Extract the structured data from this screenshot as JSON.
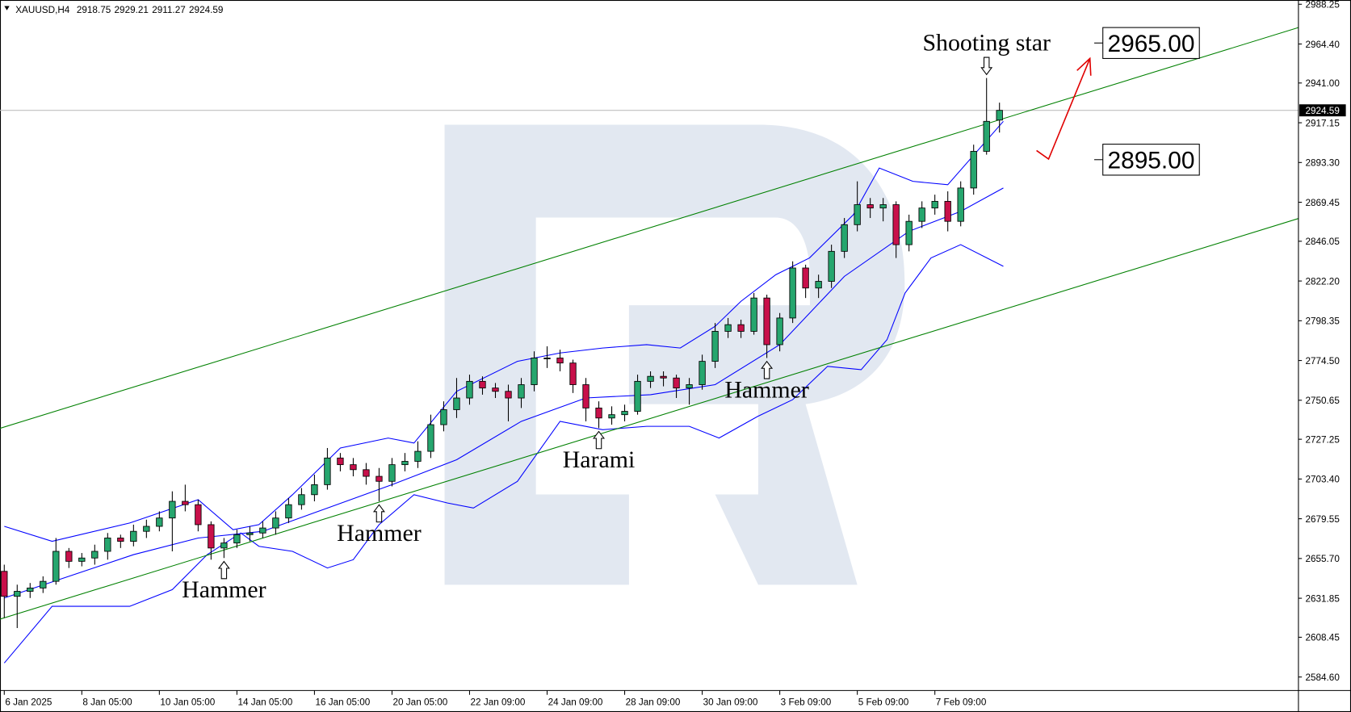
{
  "chart_data": {
    "type": "candlestick",
    "symbol": "XAUUSD,H4",
    "xlim": [
      -0.33,
      100.13
    ],
    "ylim": [
      2576.5,
      2990.8
    ],
    "yticks": [
      2988.25,
      {
        "value": 2964.4,
        "label": "2964.40"
      },
      {
        "value": 2941,
        "label": "2941.00"
      },
      2917.15,
      {
        "value": 2893.3,
        "label": "2893.30"
      },
      2869.45,
      2846.05,
      {
        "value": 2822.2,
        "label": "2822.20"
      },
      2798.35,
      {
        "value": 2774.5,
        "label": "2774.50"
      },
      2750.65,
      2727.25,
      {
        "value": 2703.4,
        "label": "2703.40"
      },
      2679.55,
      {
        "value": 2655.7,
        "label": "2655.70"
      },
      2631.85,
      2608.45,
      {
        "value": 2584.6,
        "label": "2584.60"
      }
    ],
    "xticks": [
      {
        "value": 0,
        "label": "6 Jan 2025"
      },
      {
        "value": 6,
        "label": "8 Jan 05:00"
      },
      {
        "value": 12,
        "label": "10 Jan 05:00"
      },
      {
        "value": 18,
        "label": "14 Jan 05:00"
      },
      {
        "value": 24,
        "label": "16 Jan 05:00"
      },
      {
        "value": 30,
        "label": "20 Jan 05:00"
      },
      {
        "value": 36,
        "label": "22 Jan 09:00"
      },
      {
        "value": 42,
        "label": "24 Jan 09:00"
      },
      {
        "value": 48,
        "label": "28 Jan 09:00"
      },
      {
        "value": 54,
        "label": "30 Jan 09:00"
      },
      {
        "value": 60,
        "label": "3 Feb 09:00"
      },
      {
        "value": 66,
        "label": "5 Feb 09:00"
      },
      {
        "value": 72,
        "label": "7 Feb 09:00"
      }
    ],
    "up_color": "#26a66e",
    "down_color": "#c8104a",
    "ohlc": [
      [
        2648,
        2652,
        2620,
        2633
      ],
      [
        2633,
        2640,
        2614,
        2636
      ],
      [
        2636,
        2641,
        2632,
        2638
      ],
      [
        2638,
        2645,
        2635,
        2642
      ],
      [
        2642,
        2668,
        2640,
        2660
      ],
      [
        2660,
        2662,
        2650,
        2654
      ],
      [
        2654,
        2659,
        2651,
        2656
      ],
      [
        2656,
        2664,
        2652,
        2660
      ],
      [
        2660,
        2671,
        2655,
        2668
      ],
      [
        2668,
        2670,
        2662,
        2666
      ],
      [
        2666,
        2676,
        2663,
        2672
      ],
      [
        2672,
        2679,
        2668,
        2675
      ],
      [
        2675,
        2684,
        2672,
        2680
      ],
      [
        2680,
        2696,
        2660,
        2690
      ],
      [
        2690,
        2700,
        2684,
        2688
      ],
      [
        2688,
        2691,
        2672,
        2676
      ],
      [
        2676,
        2678,
        2655,
        2662
      ],
      [
        2662,
        2668,
        2656,
        2665
      ],
      [
        2665,
        2673,
        2662,
        2670
      ],
      [
        2670,
        2675,
        2666,
        2671
      ],
      [
        2671,
        2678,
        2668,
        2674
      ],
      [
        2674,
        2684,
        2670,
        2680
      ],
      [
        2680,
        2692,
        2677,
        2688
      ],
      [
        2688,
        2698,
        2685,
        2694
      ],
      [
        2694,
        2706,
        2690,
        2700
      ],
      [
        2700,
        2722,
        2697,
        2716
      ],
      [
        2716,
        2719,
        2708,
        2712
      ],
      [
        2712,
        2716,
        2705,
        2709
      ],
      [
        2709,
        2713,
        2700,
        2705
      ],
      [
        2705,
        2710,
        2690,
        2702
      ],
      [
        2702,
        2716,
        2699,
        2712
      ],
      [
        2712,
        2719,
        2708,
        2714
      ],
      [
        2714,
        2726,
        2710,
        2720
      ],
      [
        2720,
        2742,
        2716,
        2736
      ],
      [
        2736,
        2750,
        2732,
        2745
      ],
      [
        2745,
        2764,
        2740,
        2752
      ],
      [
        2752,
        2766,
        2748,
        2762
      ],
      [
        2762,
        2765,
        2754,
        2758
      ],
      [
        2758,
        2761,
        2752,
        2756
      ],
      [
        2756,
        2760,
        2738,
        2752
      ],
      [
        2752,
        2764,
        2746,
        2760
      ],
      [
        2760,
        2780,
        2756,
        2776
      ],
      [
        2776,
        2783,
        2770,
        2776
      ],
      [
        2776,
        2781,
        2768,
        2773
      ],
      [
        2773,
        2775,
        2755,
        2760
      ],
      [
        2760,
        2764,
        2738,
        2746
      ],
      [
        2746,
        2750,
        2734,
        2740
      ],
      [
        2740,
        2747,
        2736,
        2742
      ],
      [
        2742,
        2748,
        2738,
        2744
      ],
      [
        2744,
        2766,
        2742,
        2762
      ],
      [
        2762,
        2768,
        2758,
        2765
      ],
      [
        2765,
        2768,
        2759,
        2764
      ],
      [
        2764,
        2766,
        2752,
        2758
      ],
      [
        2758,
        2764,
        2748,
        2760
      ],
      [
        2760,
        2778,
        2757,
        2774
      ],
      [
        2774,
        2797,
        2770,
        2792
      ],
      [
        2792,
        2800,
        2788,
        2796
      ],
      [
        2796,
        2799,
        2788,
        2792
      ],
      [
        2792,
        2815,
        2790,
        2812
      ],
      [
        2812,
        2814,
        2776,
        2784
      ],
      [
        2784,
        2803,
        2780,
        2800
      ],
      [
        2800,
        2834,
        2797,
        2830
      ],
      [
        2830,
        2832,
        2812,
        2818
      ],
      [
        2818,
        2826,
        2812,
        2822
      ],
      [
        2822,
        2844,
        2818,
        2840
      ],
      [
        2840,
        2860,
        2836,
        2856
      ],
      [
        2856,
        2882,
        2852,
        2868
      ],
      [
        2868,
        2872,
        2860,
        2866
      ],
      [
        2866,
        2872,
        2858,
        2868
      ],
      [
        2868,
        2870,
        2836,
        2844
      ],
      [
        2844,
        2862,
        2840,
        2858
      ],
      [
        2858,
        2870,
        2854,
        2866
      ],
      [
        2866,
        2874,
        2862,
        2870
      ],
      [
        2870,
        2876,
        2852,
        2858
      ],
      [
        2858,
        2882,
        2855,
        2878
      ],
      [
        2878,
        2904,
        2874,
        2900
      ],
      [
        2900,
        2944,
        2898,
        2918
      ],
      [
        2918.75,
        2929.21,
        2911.27,
        2924.59
      ]
    ],
    "lines": [
      {
        "color": "#0000ff",
        "x": [
          0,
          3.7,
          9.7,
          15,
          17.7,
          19.7,
          22.3,
          26,
          29.7,
          31.7,
          35,
          39.7,
          43,
          46.3,
          49.7,
          52.3,
          55,
          57,
          59.7,
          62.3,
          65.7,
          67.7,
          70.3,
          73,
          77.3
        ],
        "values": [
          2675,
          2666,
          2677,
          2691,
          2673,
          2676,
          2694,
          2722,
          2728,
          2725,
          2756,
          2774,
          2779,
          2782,
          2784,
          2782,
          2795,
          2810,
          2826,
          2836,
          2862,
          2890,
          2882,
          2880,
          2918
        ]
      },
      {
        "color": "#0000ff",
        "x": [
          0,
          5,
          10,
          15,
          20,
          25,
          30,
          35,
          40,
          45,
          50,
          55,
          60,
          65,
          70,
          74,
          77.3
        ],
        "values": [
          2632,
          2645,
          2658,
          2668,
          2672,
          2686,
          2700,
          2715,
          2738,
          2752,
          2754,
          2760,
          2784,
          2825,
          2852,
          2864,
          2878
        ]
      },
      {
        "color": "#0000ff",
        "x": [
          0,
          3.7,
          9.7,
          13,
          15.7,
          18.3,
          19.7,
          22.3,
          25,
          27,
          29,
          31.7,
          34.3,
          36.3,
          39.7,
          43,
          46.3,
          49.7,
          53,
          55.3,
          58.3,
          61,
          63.7,
          66.3,
          68.3,
          69.7,
          71.7,
          74,
          77.3
        ],
        "values": [
          2593,
          2627,
          2627,
          2637,
          2658,
          2671,
          2663,
          2660,
          2650,
          2655,
          2676,
          2694,
          2689,
          2686,
          2702,
          2738,
          2733,
          2735,
          2735,
          2728,
          2741,
          2751,
          2771,
          2769,
          2787,
          2815,
          2836,
          2844,
          2831
        ]
      },
      {
        "color": "#008000",
        "x": [
          -0.33,
          100.13
        ],
        "values": [
          2733.8,
          2974.3
        ]
      },
      {
        "color": "#008000",
        "x": [
          -0.33,
          100.13
        ],
        "values": [
          2619.3,
          2859.7
        ]
      }
    ],
    "annotations": [
      {
        "text": "Hammer",
        "x": 17,
        "position": "below"
      },
      {
        "text": "Hammer",
        "x": 29,
        "position": "below"
      },
      {
        "text": "Harami",
        "x": 46,
        "position": "below"
      },
      {
        "text": "Hammer",
        "x": 59,
        "position": "below"
      },
      {
        "text": "Shooting star",
        "x": 76,
        "position": "above"
      }
    ],
    "levels": [
      {
        "value": 2965,
        "label": "2965.00"
      },
      {
        "value": 2895,
        "label": "2895.00"
      }
    ]
  }
}
